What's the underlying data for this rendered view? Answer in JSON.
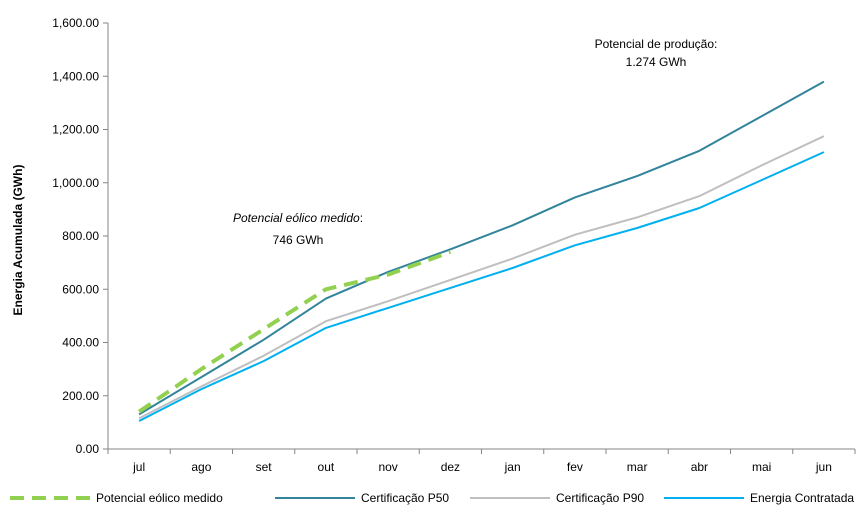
{
  "chart_data": {
    "type": "line",
    "categories": [
      "jul",
      "ago",
      "set",
      "out",
      "nov",
      "dez",
      "jan",
      "fev",
      "mar",
      "abr",
      "mai",
      "jun"
    ],
    "ylabel": "Energia Acumulada (GWh)",
    "xlabel": "",
    "ylim": [
      0,
      1600
    ],
    "yticks": [
      "0.00",
      "200.00",
      "400.00",
      "600.00",
      "800.00",
      "1,000.00",
      "1,200.00",
      "1,400.00",
      "1,600.00"
    ],
    "grid": false,
    "legend_position": "bottom",
    "series": [
      {
        "name": "Potencial eólico medido",
        "color": "#92d050",
        "style": "dashed",
        "values": [
          140,
          300,
          450,
          600,
          655,
          740,
          null,
          null,
          null,
          null,
          null,
          null
        ]
      },
      {
        "name": "Certificação P50",
        "color": "#31849b",
        "style": "solid",
        "values": [
          130,
          270,
          410,
          565,
          665,
          750,
          840,
          945,
          1025,
          1120,
          1250,
          1380
        ]
      },
      {
        "name": "Certificação P90",
        "color": "#bfbfbf",
        "style": "solid",
        "values": [
          115,
          235,
          350,
          480,
          555,
          635,
          715,
          805,
          870,
          950,
          1065,
          1175
        ]
      },
      {
        "name": "Energia Contratada",
        "color": "#00b0f0",
        "style": "solid",
        "values": [
          105,
          225,
          330,
          455,
          530,
          605,
          680,
          765,
          830,
          905,
          1010,
          1115
        ]
      }
    ],
    "annotations": {
      "potencial_eolico": {
        "label": "Potencial eólico medido",
        "suffix": ":",
        "value": "746 GWh"
      },
      "potencial_producao": {
        "label": "Potencial de produção:",
        "value": "1.274 GWh"
      }
    }
  }
}
